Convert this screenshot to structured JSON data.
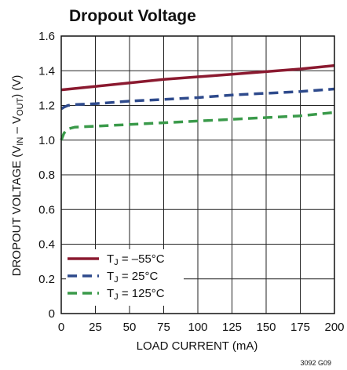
{
  "chart_data": {
    "type": "line",
    "title": "Dropout Voltage",
    "xlabel": "LOAD CURRENT (mA)",
    "ylabel": {
      "prefix": "DROPOUT VOLTAGE (V",
      "sub1": "IN",
      "mid": " – V",
      "sub2": "OUT",
      "suffix": ") (V)"
    },
    "xlim": [
      0,
      200
    ],
    "ylim": [
      0,
      1.6
    ],
    "xticks": [
      0,
      25,
      50,
      75,
      100,
      125,
      150,
      175,
      200
    ],
    "yticks": [
      0,
      0.2,
      0.4,
      0.6,
      0.8,
      1.0,
      1.2,
      1.4,
      1.6
    ],
    "ytick_labels": [
      "0",
      "0.2",
      "0.4",
      "0.6",
      "0.8",
      "1.0",
      "1.2",
      "1.4",
      "1.6"
    ],
    "grid": true,
    "legend_position": "bottom-left",
    "series": [
      {
        "name": "T_J = –55°C",
        "label_parts": [
          "T",
          "J",
          " = –55°C"
        ],
        "color": "#8b1a30",
        "dash": "solid",
        "x": [
          0,
          25,
          50,
          75,
          100,
          125,
          150,
          175,
          200
        ],
        "y": [
          1.29,
          1.31,
          1.33,
          1.35,
          1.365,
          1.38,
          1.395,
          1.41,
          1.43
        ]
      },
      {
        "name": "T_J = 25°C",
        "label_parts": [
          "T",
          "J",
          " = 25°C"
        ],
        "color": "#2e4a8c",
        "dash": "dashed",
        "x": [
          0,
          2,
          5,
          10,
          25,
          50,
          75,
          100,
          125,
          150,
          175,
          200
        ],
        "y": [
          1.18,
          1.19,
          1.2,
          1.205,
          1.21,
          1.225,
          1.235,
          1.245,
          1.26,
          1.27,
          1.28,
          1.295
        ]
      },
      {
        "name": "T_J = 125°C",
        "label_parts": [
          "T",
          "J",
          " = 125°C"
        ],
        "color": "#3a9a4a",
        "dash": "dashed",
        "x": [
          0,
          2,
          5,
          10,
          25,
          50,
          75,
          100,
          125,
          150,
          175,
          200
        ],
        "y": [
          1.0,
          1.04,
          1.065,
          1.075,
          1.08,
          1.09,
          1.1,
          1.11,
          1.12,
          1.13,
          1.14,
          1.16
        ]
      }
    ],
    "figure_code": "3092 G09"
  }
}
